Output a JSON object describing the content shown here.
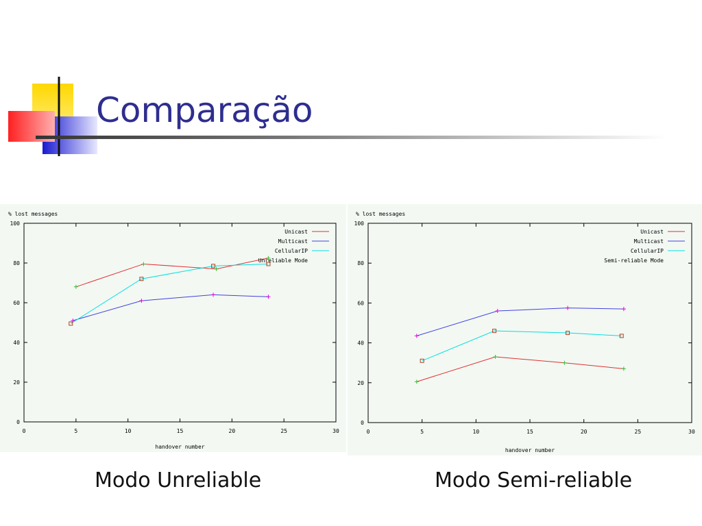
{
  "slide": {
    "title": "Comparação",
    "caption_left": "Modo Unreliable",
    "caption_right": "Modo Semi-reliable"
  },
  "chart_data": [
    {
      "type": "line",
      "title": "",
      "ylabel": "% lost messages",
      "xlabel": "handover number",
      "xlim": [
        0,
        30
      ],
      "ylim": [
        0,
        100
      ],
      "xticks": [
        0,
        5,
        10,
        15,
        20,
        25,
        30
      ],
      "yticks": [
        0,
        20,
        40,
        60,
        80,
        100
      ],
      "grid": false,
      "legend_position": "top-right",
      "series": [
        {
          "name": "Unicast",
          "color": "#e03030",
          "marker": "plus",
          "x": [
            5,
            11.5,
            18.5,
            23.5
          ],
          "y": [
            68,
            79.5,
            77,
            82.5
          ]
        },
        {
          "name": "Multicast",
          "color": "#4040e0",
          "marker": "plus-magenta",
          "x": [
            4.7,
            11.3,
            18.2,
            23.5
          ],
          "y": [
            51,
            61,
            64,
            63
          ]
        },
        {
          "name": "CellularIP",
          "color": "#00e0e0",
          "marker": "square",
          "x": [
            4.5,
            11.3,
            18.2,
            23.5
          ],
          "y": [
            49.5,
            72,
            78.5,
            79.5
          ]
        },
        {
          "name": "Unreliable Mode",
          "color": "#000000",
          "marker": "none",
          "x": [],
          "y": []
        }
      ]
    },
    {
      "type": "line",
      "title": "",
      "ylabel": "% lost messages",
      "xlabel": "handover number",
      "xlim": [
        0,
        30
      ],
      "ylim": [
        0,
        100
      ],
      "xticks": [
        0,
        5,
        10,
        15,
        20,
        25,
        30
      ],
      "yticks": [
        0,
        20,
        40,
        60,
        80,
        100
      ],
      "grid": false,
      "legend_position": "top-right",
      "series": [
        {
          "name": "Unicast",
          "color": "#e03030",
          "marker": "plus",
          "x": [
            4.5,
            11.8,
            18.2,
            23.7
          ],
          "y": [
            20.5,
            33,
            30,
            27
          ]
        },
        {
          "name": "Multicast",
          "color": "#4040e0",
          "marker": "plus-magenta",
          "x": [
            4.5,
            12,
            18.5,
            23.7
          ],
          "y": [
            43.5,
            56,
            57.5,
            57
          ]
        },
        {
          "name": "CellularIP",
          "color": "#00e0e0",
          "marker": "square",
          "x": [
            5,
            11.7,
            18.5,
            23.5
          ],
          "y": [
            31,
            46,
            45,
            43.5
          ]
        },
        {
          "name": "Semi-reliable Mode",
          "color": "#000000",
          "marker": "none",
          "x": [],
          "y": []
        }
      ]
    }
  ]
}
